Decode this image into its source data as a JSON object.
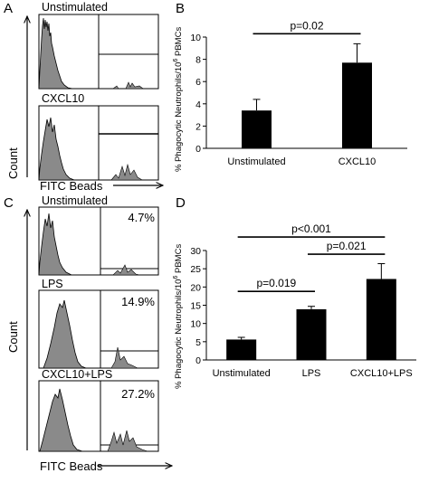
{
  "figure": {
    "panels": {
      "A": {
        "letter": "A",
        "histograms": [
          {
            "label": "Unstimulated"
          },
          {
            "label": "CXCL10"
          }
        ],
        "yaxis_label": "Count",
        "xaxis_label": "FITC Beads"
      },
      "B": {
        "letter": "B"
      },
      "C": {
        "letter": "C",
        "histograms": [
          {
            "label": "Unstimulated",
            "gate_percent": "4.7%"
          },
          {
            "label": "LPS",
            "gate_percent": "14.9%"
          },
          {
            "label": "CXCL10+LPS",
            "gate_percent": "27.2%"
          }
        ],
        "yaxis_label": "Count",
        "xaxis_label": "FITC Beads"
      },
      "D": {
        "letter": "D"
      }
    },
    "ylabel_main": "% Phagocytic Neutrophils/10",
    "ylabel_sup": "6",
    "ylabel_tail": " PBMCs"
  },
  "chart_data": [
    {
      "panel": "B",
      "type": "bar",
      "categories": [
        "Unstimulated",
        "CXCL10"
      ],
      "values": [
        3.4,
        7.7
      ],
      "errors": [
        1.0,
        1.7
      ],
      "ylabel": "% Phagocytic Neutrophils/10^6 PBMCs",
      "ylim": [
        0,
        10
      ],
      "yticks": [
        0,
        2,
        4,
        6,
        8,
        10
      ],
      "bar_color": "#000000",
      "comparisons": [
        {
          "from": 0,
          "to": 1,
          "label": "p=0.02",
          "y": 10.3
        }
      ]
    },
    {
      "panel": "D",
      "type": "bar",
      "categories": [
        "Unstimulated",
        "LPS",
        "CXCL10+LPS"
      ],
      "values": [
        5.6,
        13.9,
        22.2
      ],
      "errors": [
        0.6,
        0.8,
        4.2
      ],
      "ylabel": "% Phagocytic Neutrophils/10^6 PBMCs",
      "ylim": [
        0,
        30
      ],
      "yticks": [
        0,
        5,
        10,
        15,
        20,
        25,
        30
      ],
      "bar_color": "#000000",
      "comparisons": [
        {
          "from": 0,
          "to": 1,
          "label": "p=0.019",
          "y": 18.8
        },
        {
          "from": 1,
          "to": 2,
          "label": "p=0.021",
          "y": 29.0
        },
        {
          "from": 0,
          "to": 2,
          "label": "p<0.001",
          "y": 33.7
        }
      ]
    }
  ]
}
